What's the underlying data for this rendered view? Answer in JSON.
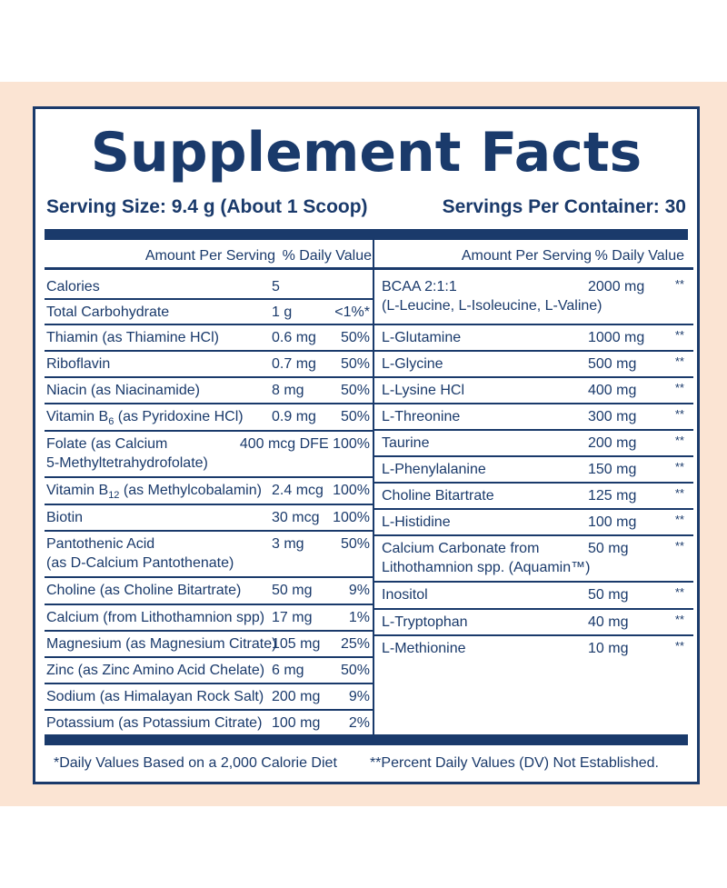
{
  "title": "Supplement Facts",
  "serving_size": "Serving Size: 9.4 g (About 1 Scoop)",
  "servings_per_container": "Servings Per Container: 30",
  "header": {
    "amount": "Amount Per Serving",
    "dv": "% Daily Value"
  },
  "left_rows": [
    {
      "name": [
        "Calories"
      ],
      "amount": "5",
      "dv": ""
    },
    {
      "name": [
        "Total Carbohydrate"
      ],
      "amount": "1 g",
      "dv": "<1%*"
    },
    {
      "name": [
        "Thiamin (as Thiamine HCl)"
      ],
      "amount": "0.6 mg",
      "dv": "50%"
    },
    {
      "name": [
        "Riboflavin"
      ],
      "amount": "0.7 mg",
      "dv": "50%"
    },
    {
      "name": [
        "Niacin (as Niacinamide)"
      ],
      "amount": "8 mg",
      "dv": "50%"
    },
    {
      "name": [
        "Vitamin B",
        "6",
        " (as Pyridoxine HCl)"
      ],
      "amount": "0.9 mg",
      "dv": "50%"
    },
    {
      "name": [
        "Folate (as Calcium",
        "5-Methyltetrahydrofolate)"
      ],
      "amount": "400 mcg DFE",
      "dv": "100%"
    },
    {
      "name": [
        "Vitamin B",
        "12",
        " (as Methylcobalamin)"
      ],
      "amount": "2.4 mcg",
      "dv": "100%"
    },
    {
      "name": [
        "Biotin"
      ],
      "amount": "30 mcg",
      "dv": "100%"
    },
    {
      "name": [
        "Pantothenic Acid",
        "(as D-Calcium Pantothenate)"
      ],
      "amount": "3 mg",
      "dv": "50%"
    },
    {
      "name": [
        "Choline (as Choline Bitartrate)"
      ],
      "amount": "50 mg",
      "dv": "9%"
    },
    {
      "name": [
        "Calcium (from Lithothamnion spp)"
      ],
      "amount": "17 mg",
      "dv": "1%"
    },
    {
      "name": [
        "Magnesium (as Magnesium Citrate)"
      ],
      "amount": "105 mg",
      "dv": "25%"
    },
    {
      "name": [
        "Zinc (as Zinc Amino Acid Chelate)"
      ],
      "amount": "6 mg",
      "dv": "50%"
    },
    {
      "name": [
        "Sodium (as Himalayan Rock Salt)"
      ],
      "amount": "200 mg",
      "dv": "9%"
    },
    {
      "name": [
        "Potassium (as Potassium Citrate)"
      ],
      "amount": "100 mg",
      "dv": "2%"
    }
  ],
  "right_rows": [
    {
      "name": [
        "BCAA 2:1:1",
        "(L-Leucine, L-Isoleucine, L-Valine)"
      ],
      "amount": "2000 mg",
      "dv": "**"
    },
    {
      "name": [
        "L-Glutamine"
      ],
      "amount": "1000 mg",
      "dv": "**"
    },
    {
      "name": [
        "L-Glycine"
      ],
      "amount": "500 mg",
      "dv": "**"
    },
    {
      "name": [
        "L-Lysine HCl"
      ],
      "amount": "400 mg",
      "dv": "**"
    },
    {
      "name": [
        "L-Threonine"
      ],
      "amount": "300 mg",
      "dv": "**"
    },
    {
      "name": [
        "Taurine"
      ],
      "amount": "200 mg",
      "dv": "**"
    },
    {
      "name": [
        "L-Phenylalanine"
      ],
      "amount": "150 mg",
      "dv": "**"
    },
    {
      "name": [
        "Choline Bitartrate"
      ],
      "amount": "125 mg",
      "dv": "**"
    },
    {
      "name": [
        "L-Histidine"
      ],
      "amount": "100 mg",
      "dv": "**"
    },
    {
      "name": [
        "Calcium Carbonate from",
        "Lithothamnion spp. (Aquamin™)"
      ],
      "amount": "50 mg",
      "dv": "**"
    },
    {
      "name": [
        "Inositol"
      ],
      "amount": "50 mg",
      "dv": "**"
    },
    {
      "name": [
        "L-Tryptophan"
      ],
      "amount": "40 mg",
      "dv": "**"
    },
    {
      "name": [
        "L-Methionine"
      ],
      "amount": "10 mg",
      "dv": "**"
    }
  ],
  "footnote_left": "*Daily Values Based on a 2,000 Calorie Diet",
  "footnote_right": "**Percent Daily Values (DV) Not Established.",
  "colors": {
    "navy": "#1a3a6b",
    "peach": "#fbe4d3"
  }
}
